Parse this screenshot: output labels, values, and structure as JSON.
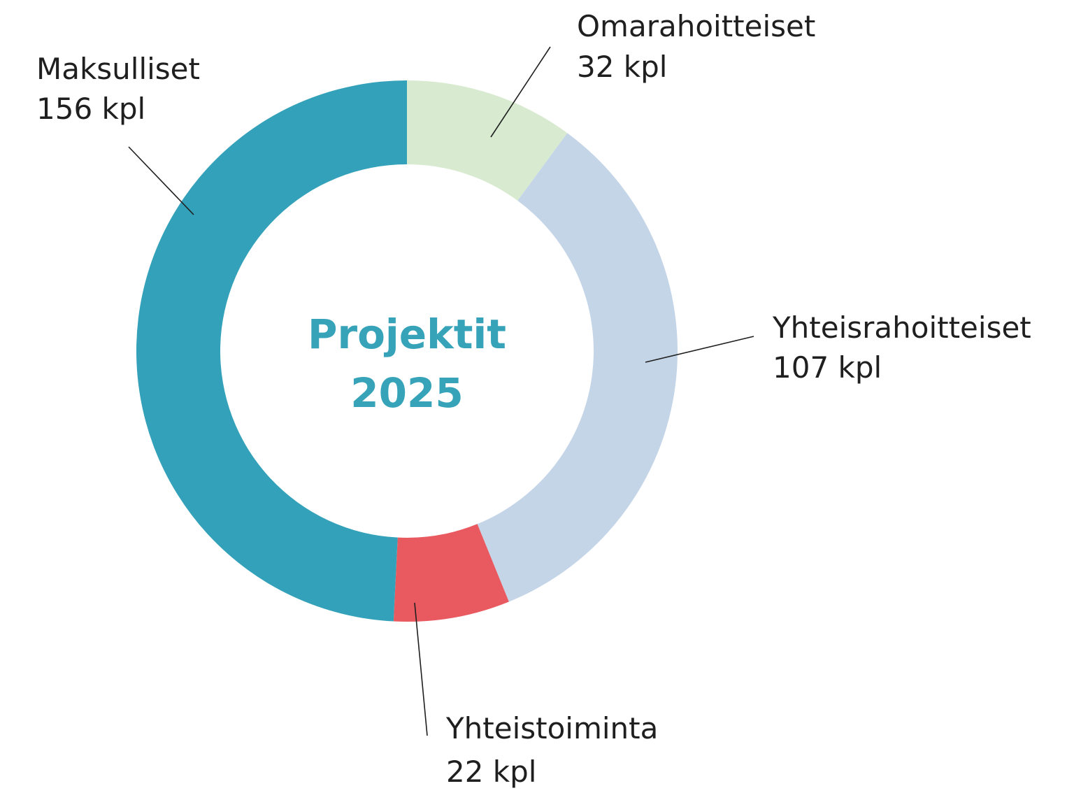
{
  "chart_data": {
    "type": "donut",
    "title": "Projektit 2025",
    "categories": [
      "Omarahoitteiset",
      "Yhteisrahoitteiset",
      "Yhteistoiminta",
      "Maksulliset"
    ],
    "values": [
      32,
      107,
      22,
      156
    ],
    "value_labels": [
      "32 kpl",
      "107 kpl",
      "22 kpl",
      "156 kpl"
    ],
    "colors": [
      "#d8ebd0",
      "#c5d5e8",
      "#e95a60",
      "#33a1b9"
    ]
  }
}
